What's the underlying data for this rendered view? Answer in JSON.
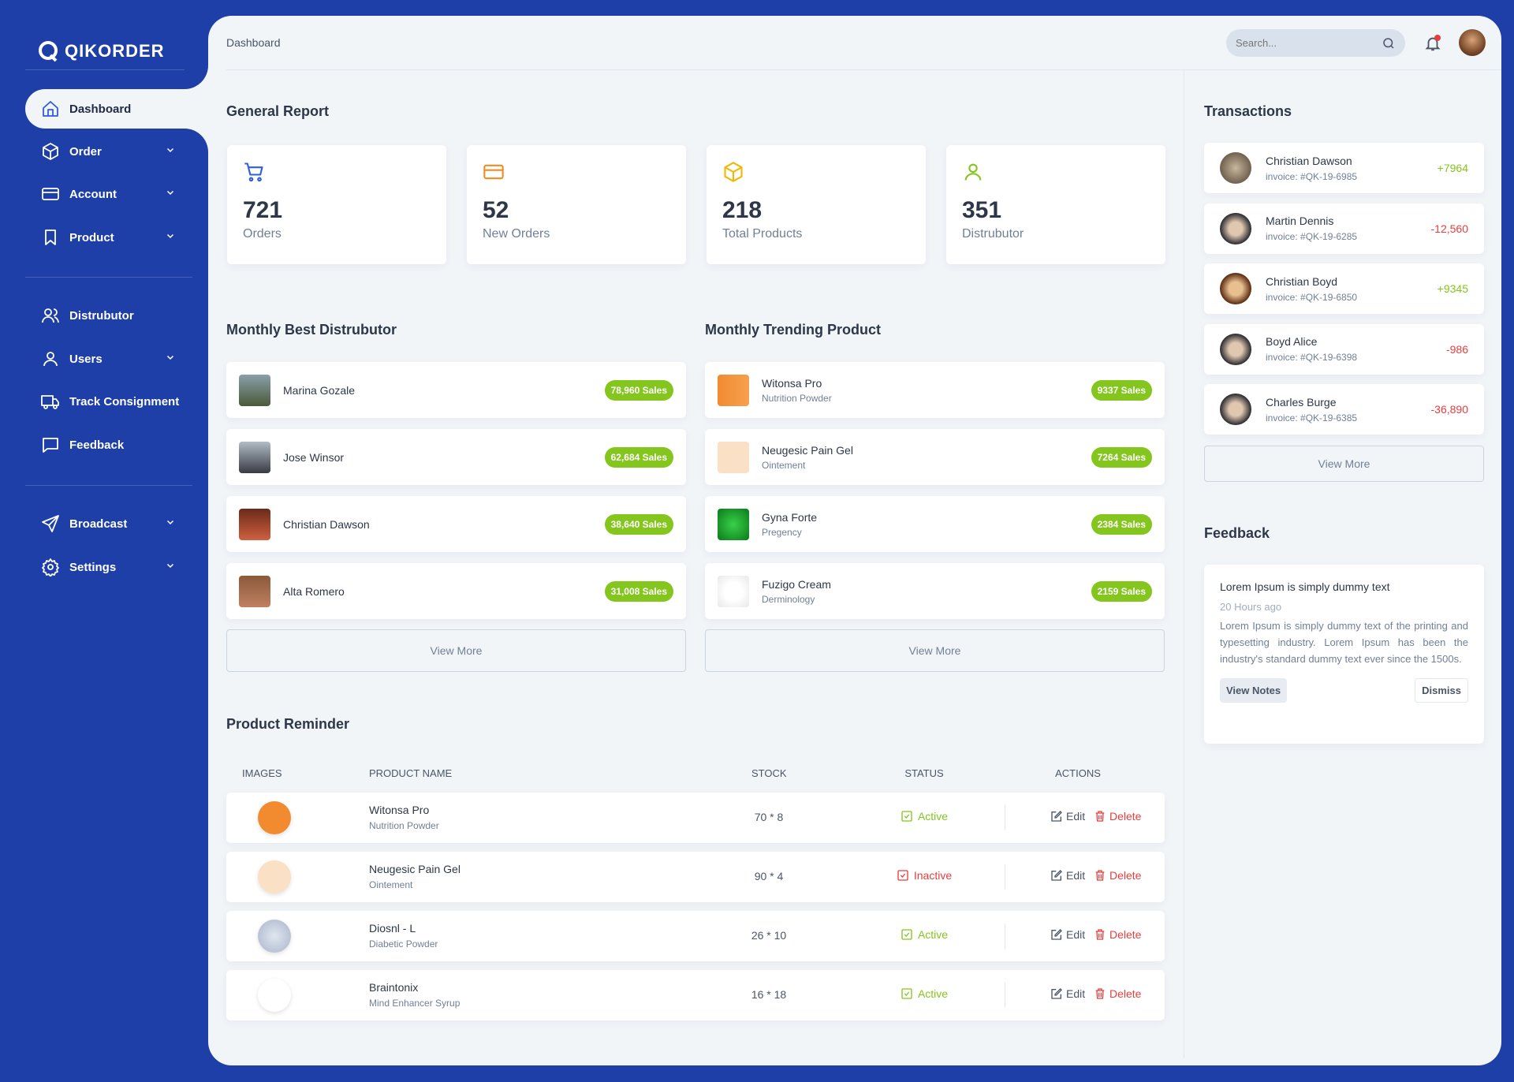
{
  "brand": {
    "name": "QIKORDER"
  },
  "sidebar": {
    "items": [
      {
        "label": "Dashboard",
        "icon": "home-icon",
        "active": true
      },
      {
        "label": "Order",
        "icon": "box-icon",
        "dropdown": true
      },
      {
        "label": "Account",
        "icon": "credit-card-icon",
        "dropdown": true
      },
      {
        "label": "Product",
        "icon": "bookmark-icon",
        "dropdown": true
      },
      {
        "label": "Distrubutor",
        "icon": "users-icon"
      },
      {
        "label": "Users",
        "icon": "user-icon",
        "dropdown": true
      },
      {
        "label": "Track Consignment",
        "icon": "truck-icon"
      },
      {
        "label": "Feedback",
        "icon": "message-icon"
      },
      {
        "label": "Broadcast",
        "icon": "send-icon",
        "dropdown": true
      },
      {
        "label": "Settings",
        "icon": "settings-icon",
        "dropdown": true
      }
    ]
  },
  "header": {
    "breadcrumb": "Dashboard",
    "search_placeholder": "Search..."
  },
  "general_report": {
    "title": "General Report",
    "stats": [
      {
        "value": "721",
        "label": "Orders",
        "icon": "cart-icon",
        "color": "#2f5ce0"
      },
      {
        "value": "52",
        "label": "New Orders",
        "icon": "credit-card-icon",
        "color": "#f28b20"
      },
      {
        "value": "218",
        "label": "Total Products",
        "icon": "box-icon",
        "color": "#f2b705"
      },
      {
        "value": "351",
        "label": "Distrubutor",
        "icon": "user-icon",
        "color": "#84c51e"
      }
    ]
  },
  "best_distributor": {
    "title": "Monthly Best Distrubutor",
    "view_more": "View More",
    "items": [
      {
        "name": "Marina Gozale",
        "sales": "78,960 Sales"
      },
      {
        "name": "Jose Winsor",
        "sales": "62,684 Sales"
      },
      {
        "name": "Christian Dawson",
        "sales": "38,640 Sales"
      },
      {
        "name": "Alta Romero",
        "sales": "31,008 Sales"
      }
    ]
  },
  "trending_product": {
    "title": "Monthly Trending Product",
    "view_more": "View More",
    "items": [
      {
        "name": "Witonsa Pro",
        "category": "Nutrition Powder",
        "sales": "9337 Sales"
      },
      {
        "name": "Neugesic Pain Gel",
        "category": "Ointement",
        "sales": "7264 Sales"
      },
      {
        "name": "Gyna Forte",
        "category": "Pregency",
        "sales": "2384 Sales"
      },
      {
        "name": "Fuzigo Cream",
        "category": "Derminology",
        "sales": "2159 Sales"
      }
    ]
  },
  "product_reminder": {
    "title": "Product Reminder",
    "columns": [
      "IMAGES",
      "PRODUCT NAME",
      "STOCK",
      "STATUS",
      "ACTIONS"
    ],
    "edit_label": "Edit",
    "delete_label": "Delete",
    "rows": [
      {
        "name": "Witonsa Pro",
        "category": "Nutrition Powder",
        "stock": "70 * 8",
        "status": "Active"
      },
      {
        "name": "Neugesic Pain Gel",
        "category": "Ointement",
        "stock": "90 * 4",
        "status": "Inactive"
      },
      {
        "name": "Diosnl - L",
        "category": "Diabetic Powder",
        "stock": "26 * 10",
        "status": "Active"
      },
      {
        "name": "Braintonix",
        "category": "Mind Enhancer Syrup",
        "stock": "16 * 18",
        "status": "Active"
      }
    ]
  },
  "transactions": {
    "title": "Transactions",
    "view_more": "View More",
    "items": [
      {
        "name": "Christian Dawson",
        "invoice": "invoice: #QK-19-6985",
        "amount": "+7964"
      },
      {
        "name": "Martin Dennis",
        "invoice": "invoice: #QK-19-6285",
        "amount": "-12,560"
      },
      {
        "name": "Christian Boyd",
        "invoice": "invoice: #QK-19-6850",
        "amount": "+9345"
      },
      {
        "name": "Boyd Alice",
        "invoice": "invoice: #QK-19-6398",
        "amount": "-986"
      },
      {
        "name": "Charles Burge",
        "invoice": "invoice: #QK-19-6385",
        "amount": "-36,890"
      }
    ]
  },
  "feedback": {
    "title": "Feedback",
    "heading": "Lorem Ipsum is simply dummy text",
    "time": "20 Hours ago",
    "body": "Lorem Ipsum is simply dummy text of the printing and typesetting industry. Lorem Ipsum has been the industry's standard dummy text ever since the 1500s.",
    "view_notes": "View Notes",
    "dismiss": "Dismiss"
  },
  "colors": {
    "brand": "#1e3ea8",
    "positive": "#84c51e",
    "negative": "#e53e3e",
    "background": "#f1f5f8"
  }
}
